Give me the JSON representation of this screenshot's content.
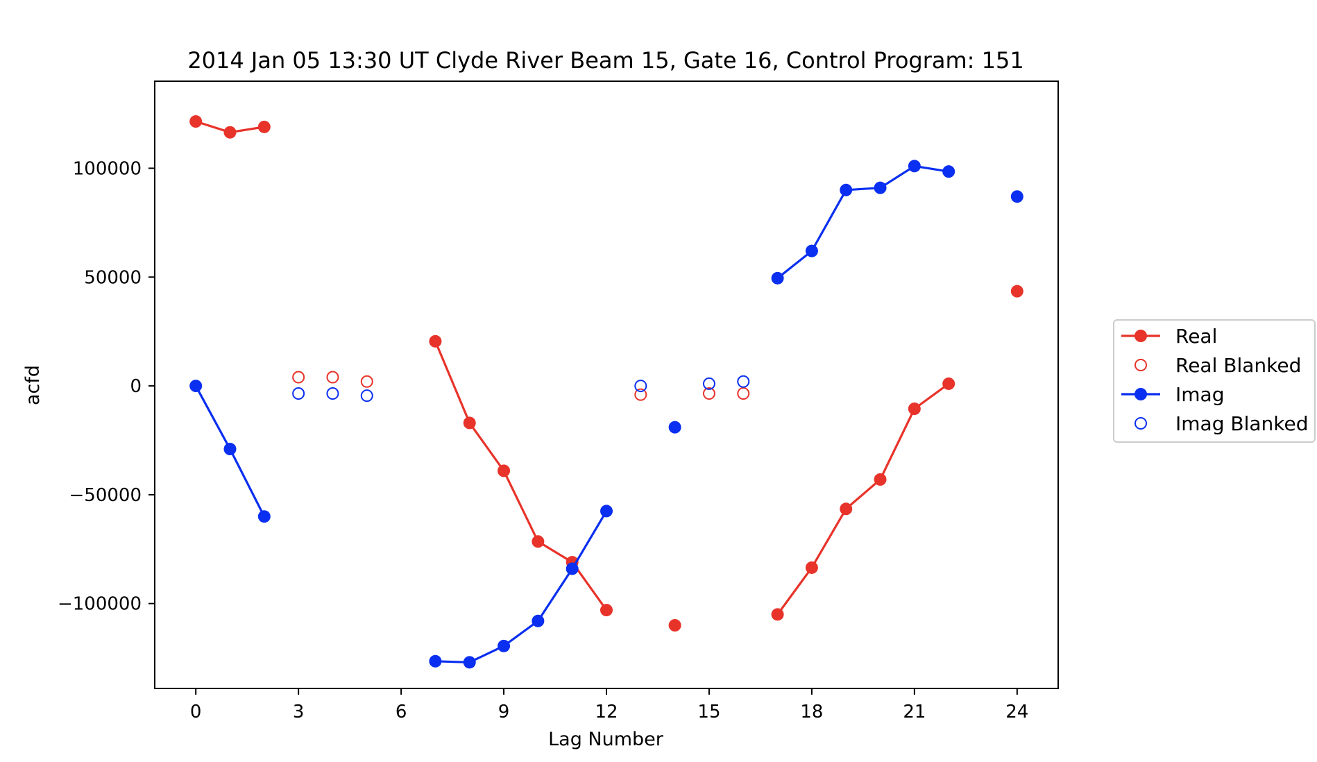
{
  "chart_data": {
    "type": "line",
    "title": "2014 Jan 05 13:30 UT Clyde River Beam 15, Gate 16, Control Program: 151",
    "xlabel": "Lag Number",
    "ylabel": "acfd",
    "xlim": [
      -1.2,
      25.2
    ],
    "ylim": [
      -139000,
      140000
    ],
    "xticks": [
      0,
      3,
      6,
      9,
      12,
      15,
      18,
      21,
      24
    ],
    "yticks": [
      -100000,
      -50000,
      0,
      50000,
      100000
    ],
    "ytick_labels": [
      "−100000",
      "−50000",
      "0",
      "50000",
      "100000"
    ],
    "grid": false,
    "legend_placement": "outside-right",
    "series": [
      {
        "name": "Real",
        "color": "#e8332a",
        "style": "line-marker",
        "segments": [
          [
            [
              0,
              121500
            ],
            [
              1,
              116500
            ],
            [
              2,
              119000
            ]
          ],
          [
            [
              7,
              20500
            ],
            [
              8,
              -17000
            ],
            [
              9,
              -39000
            ],
            [
              10,
              -71500
            ],
            [
              11,
              -81000
            ],
            [
              12,
              -103000
            ]
          ],
          [
            [
              14,
              -110000
            ]
          ],
          [
            [
              17,
              -105000
            ],
            [
              18,
              -83500
            ],
            [
              19,
              -56500
            ],
            [
              20,
              -43000
            ],
            [
              21,
              -10500
            ],
            [
              22,
              1000
            ]
          ],
          [
            [
              24,
              43500
            ]
          ]
        ]
      },
      {
        "name": "Real Blanked",
        "color": "#e8332a",
        "style": "hollow-marker",
        "points": [
          [
            3,
            4000
          ],
          [
            4,
            4000
          ],
          [
            5,
            2000
          ],
          [
            13,
            -4000
          ],
          [
            15,
            -3500
          ],
          [
            16,
            -3500
          ]
        ]
      },
      {
        "name": "Imag",
        "color": "#0a2ff0",
        "style": "line-marker",
        "segments": [
          [
            [
              0,
              0
            ],
            [
              1,
              -29000
            ],
            [
              2,
              -60000
            ]
          ],
          [
            [
              7,
              -126500
            ],
            [
              8,
              -127000
            ],
            [
              9,
              -119500
            ],
            [
              10,
              -108000
            ],
            [
              11,
              -84000
            ],
            [
              12,
              -57500
            ]
          ],
          [
            [
              14,
              -19000
            ]
          ],
          [
            [
              17,
              49500
            ],
            [
              18,
              62000
            ],
            [
              19,
              90000
            ],
            [
              20,
              91000
            ],
            [
              21,
              101000
            ],
            [
              22,
              98500
            ]
          ],
          [
            [
              24,
              87000
            ]
          ]
        ]
      },
      {
        "name": "Imag Blanked",
        "color": "#0a2ff0",
        "style": "hollow-marker",
        "points": [
          [
            3,
            -3500
          ],
          [
            4,
            -3500
          ],
          [
            5,
            -4500
          ],
          [
            13,
            0
          ],
          [
            15,
            1000
          ],
          [
            16,
            2000
          ]
        ]
      }
    ]
  }
}
